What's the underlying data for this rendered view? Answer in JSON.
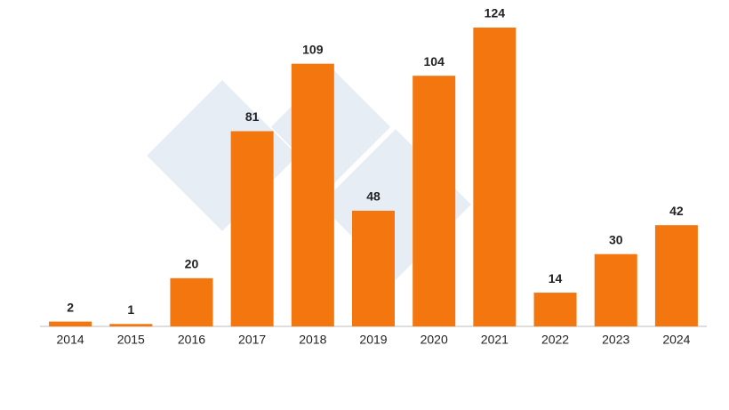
{
  "chart_data": {
    "type": "bar",
    "categories": [
      "2014",
      "2015",
      "2016",
      "2017",
      "2018",
      "2019",
      "2020",
      "2021",
      "2022",
      "2023",
      "2024"
    ],
    "values": [
      2,
      1,
      20,
      81,
      109,
      48,
      104,
      124,
      14,
      30,
      42
    ],
    "color": "#f3760e"
  }
}
